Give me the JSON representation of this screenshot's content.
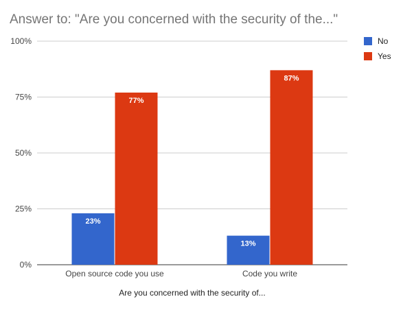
{
  "chart_data": {
    "type": "bar",
    "title": "Answer to: \"Are you concerned with the security of the...\"",
    "xlabel": "Are you concerned with the security of...",
    "ylabel": "",
    "categories": [
      "Open source code you use",
      "Code you write"
    ],
    "series": [
      {
        "name": "No",
        "color": "#3366cc",
        "values": [
          23,
          13
        ],
        "labels": [
          "23%",
          "13%"
        ]
      },
      {
        "name": "Yes",
        "color": "#dc3912",
        "values": [
          77,
          87
        ],
        "labels": [
          "77%",
          "87%"
        ]
      }
    ],
    "ylim": [
      0,
      100
    ],
    "yticks": [
      0,
      25,
      50,
      75,
      100
    ],
    "ytick_labels": [
      "0%",
      "25%",
      "50%",
      "75%",
      "100%"
    ],
    "grid": true,
    "legend_position": "right"
  }
}
